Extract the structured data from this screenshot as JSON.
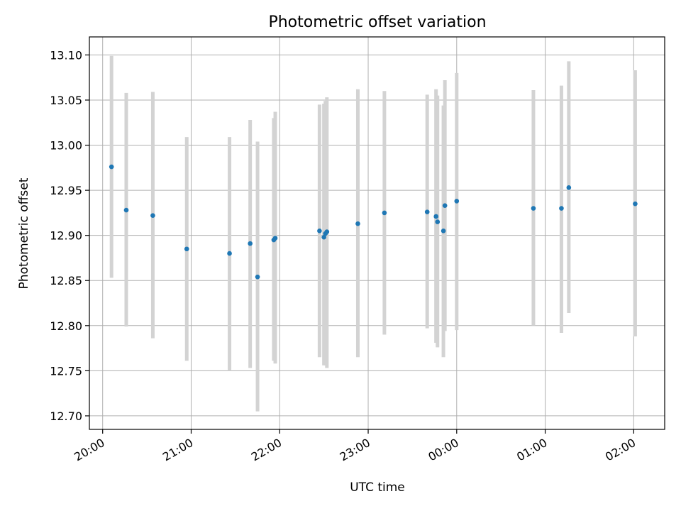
{
  "chart_data": {
    "type": "scatter",
    "title": "Photometric offset variation",
    "xlabel": "UTC time",
    "ylabel": "Photometric offset",
    "x_axis": {
      "kind": "time",
      "range": [
        "19:51",
        "02:21"
      ],
      "tick_labels": [
        "20:00",
        "21:00",
        "22:00",
        "23:00",
        "00:00",
        "01:00",
        "02:00"
      ],
      "tick_rotation_deg": -30
    },
    "y_axis": {
      "range": [
        12.685,
        13.12
      ],
      "ticks": [
        12.7,
        12.75,
        12.8,
        12.85,
        12.9,
        12.95,
        13.0,
        13.05,
        13.1
      ],
      "tick_labels": [
        "12.70",
        "12.75",
        "12.80",
        "12.85",
        "12.90",
        "12.95",
        "13.00",
        "13.05",
        "13.10"
      ]
    },
    "grid": true,
    "legend": "none",
    "colors": {
      "point": "#1f77b4",
      "errorbar": "#d3d3d3",
      "grid": "#b0b0b0"
    },
    "points": [
      {
        "time": "20:06",
        "y": 12.976,
        "ylow": 12.853,
        "yhigh": 13.099
      },
      {
        "time": "20:16",
        "y": 12.928,
        "ylow": 12.799,
        "yhigh": 13.058
      },
      {
        "time": "20:34",
        "y": 12.922,
        "ylow": 12.786,
        "yhigh": 13.059
      },
      {
        "time": "20:57",
        "y": 12.885,
        "ylow": 12.761,
        "yhigh": 13.009
      },
      {
        "time": "21:26",
        "y": 12.88,
        "ylow": 12.75,
        "yhigh": 13.009
      },
      {
        "time": "21:40",
        "y": 12.891,
        "ylow": 12.753,
        "yhigh": 13.028
      },
      {
        "time": "21:45",
        "y": 12.854,
        "ylow": 12.705,
        "yhigh": 13.004
      },
      {
        "time": "21:56",
        "y": 12.895,
        "ylow": 12.761,
        "yhigh": 13.03
      },
      {
        "time": "21:57",
        "y": 12.897,
        "ylow": 12.758,
        "yhigh": 13.037
      },
      {
        "time": "22:27",
        "y": 12.905,
        "ylow": 12.765,
        "yhigh": 13.045
      },
      {
        "time": "22:30",
        "y": 12.898,
        "ylow": 12.756,
        "yhigh": 13.046
      },
      {
        "time": "22:31",
        "y": 12.902,
        "ylow": 12.756,
        "yhigh": 13.049
      },
      {
        "time": "22:32",
        "y": 12.904,
        "ylow": 12.753,
        "yhigh": 13.053
      },
      {
        "time": "22:53",
        "y": 12.913,
        "ylow": 12.765,
        "yhigh": 13.062
      },
      {
        "time": "23:11",
        "y": 12.925,
        "ylow": 12.79,
        "yhigh": 13.06
      },
      {
        "time": "23:40",
        "y": 12.926,
        "ylow": 12.797,
        "yhigh": 13.056
      },
      {
        "time": "23:46",
        "y": 12.921,
        "ylow": 12.781,
        "yhigh": 13.062
      },
      {
        "time": "23:47",
        "y": 12.915,
        "ylow": 12.776,
        "yhigh": 13.055
      },
      {
        "time": "23:51",
        "y": 12.905,
        "ylow": 12.765,
        "yhigh": 13.044
      },
      {
        "time": "23:52",
        "y": 12.933,
        "ylow": 12.794,
        "yhigh": 13.072
      },
      {
        "time": "00:00",
        "y": 12.938,
        "ylow": 12.795,
        "yhigh": 13.08
      },
      {
        "time": "00:52",
        "y": 12.93,
        "ylow": 12.8,
        "yhigh": 13.061
      },
      {
        "time": "01:11",
        "y": 12.93,
        "ylow": 12.792,
        "yhigh": 13.066
      },
      {
        "time": "01:16",
        "y": 12.953,
        "ylow": 12.814,
        "yhigh": 13.093
      },
      {
        "time": "02:01",
        "y": 12.935,
        "ylow": 12.788,
        "yhigh": 13.083
      }
    ]
  }
}
